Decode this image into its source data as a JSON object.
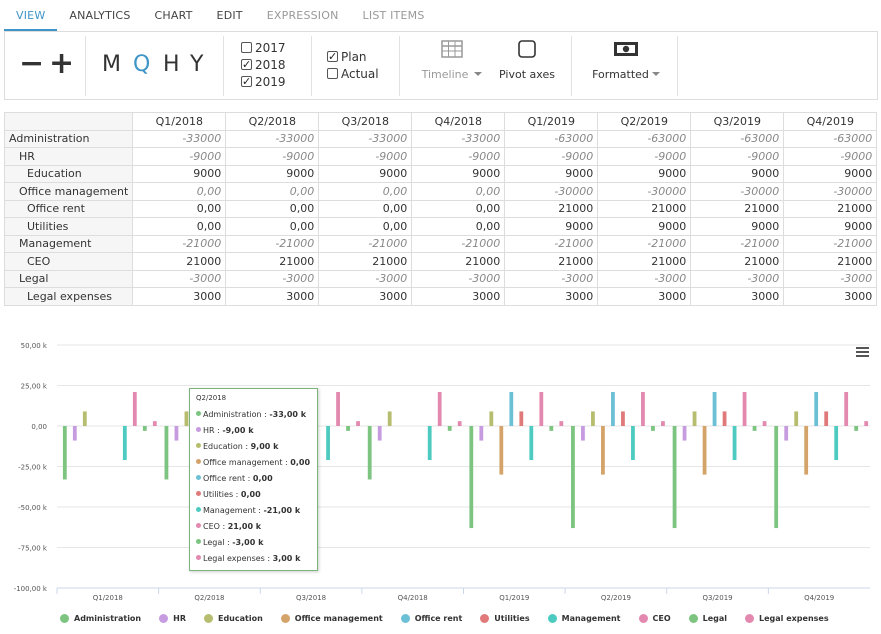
{
  "tabs": [
    {
      "label": "VIEW",
      "state": "active"
    },
    {
      "label": "ANALYTICS",
      "state": "normal"
    },
    {
      "label": "CHART",
      "state": "normal"
    },
    {
      "label": "EDIT",
      "state": "normal"
    },
    {
      "label": "EXPRESSION",
      "state": "disabled"
    },
    {
      "label": "LIST ITEMS",
      "state": "disabled"
    }
  ],
  "toolbar": {
    "zoom_out": "−",
    "zoom_in": "+",
    "periods": [
      "M",
      "Q",
      "H",
      "Y"
    ],
    "active_period": "Q",
    "years": [
      {
        "label": "2017",
        "checked": false
      },
      {
        "label": "2018",
        "checked": true
      },
      {
        "label": "2019",
        "checked": true
      }
    ],
    "versions": [
      {
        "label": "Plan",
        "checked": true
      },
      {
        "label": "Actual",
        "checked": false
      }
    ],
    "timeline_label": "Timeline",
    "pivot_label": "Pivot axes",
    "formatted_label": "Formatted"
  },
  "table": {
    "columns": [
      "Q1/2018",
      "Q2/2018",
      "Q3/2018",
      "Q4/2018",
      "Q1/2019",
      "Q2/2019",
      "Q3/2019",
      "Q4/2019"
    ],
    "rows": [
      {
        "label": "Administration",
        "level": 0,
        "values": [
          "-33000",
          "-33000",
          "-33000",
          "-33000",
          "-63000",
          "-63000",
          "-63000",
          "-63000"
        ],
        "style": "neg"
      },
      {
        "label": "HR",
        "level": 1,
        "values": [
          "-9000",
          "-9000",
          "-9000",
          "-9000",
          "-9000",
          "-9000",
          "-9000",
          "-9000"
        ],
        "style": "neg"
      },
      {
        "label": "Education",
        "level": 2,
        "values": [
          "9000",
          "9000",
          "9000",
          "9000",
          "9000",
          "9000",
          "9000",
          "9000"
        ],
        "style": "pos"
      },
      {
        "label": "Office management",
        "level": 1,
        "values": [
          "0,00",
          "0,00",
          "0,00",
          "0,00",
          "-30000",
          "-30000",
          "-30000",
          "-30000"
        ],
        "style": "neg"
      },
      {
        "label": "Office rent",
        "level": 2,
        "values": [
          "0,00",
          "0,00",
          "0,00",
          "0,00",
          "21000",
          "21000",
          "21000",
          "21000"
        ],
        "style": "pos"
      },
      {
        "label": "Utilities",
        "level": 2,
        "values": [
          "0,00",
          "0,00",
          "0,00",
          "0,00",
          "9000",
          "9000",
          "9000",
          "9000"
        ],
        "style": "pos"
      },
      {
        "label": "Management",
        "level": 1,
        "values": [
          "-21000",
          "-21000",
          "-21000",
          "-21000",
          "-21000",
          "-21000",
          "-21000",
          "-21000"
        ],
        "style": "neg"
      },
      {
        "label": "CEO",
        "level": 2,
        "values": [
          "21000",
          "21000",
          "21000",
          "21000",
          "21000",
          "21000",
          "21000",
          "21000"
        ],
        "style": "pos"
      },
      {
        "label": "Legal",
        "level": 1,
        "values": [
          "-3000",
          "-3000",
          "-3000",
          "-3000",
          "-3000",
          "-3000",
          "-3000",
          "-3000"
        ],
        "style": "neg"
      },
      {
        "label": "Legal expenses",
        "level": 2,
        "values": [
          "3000",
          "3000",
          "3000",
          "3000",
          "3000",
          "3000",
          "3000",
          "3000"
        ],
        "style": "pos"
      }
    ]
  },
  "chart_data": {
    "type": "bar",
    "categories": [
      "Q1/2018",
      "Q2/2018",
      "Q3/2018",
      "Q4/2018",
      "Q1/2019",
      "Q2/2019",
      "Q3/2019",
      "Q4/2019"
    ],
    "ylim": [
      -100,
      50
    ],
    "yticks": [
      "50,00 k",
      "25,00 k",
      "0,00",
      "-25,00 k",
      "-50,00 k",
      "-75,00 k",
      "-100,00 k"
    ],
    "ytick_values": [
      50,
      25,
      0,
      -25,
      -50,
      -75,
      -100
    ],
    "grid": true,
    "legend_position": "bottom",
    "series": [
      {
        "name": "Administration",
        "color": "#7cc47f",
        "values": [
          -33,
          -33,
          -33,
          -33,
          -63,
          -63,
          -63,
          -63
        ]
      },
      {
        "name": "HR",
        "color": "#c79be0",
        "values": [
          -9,
          -9,
          -9,
          -9,
          -9,
          -9,
          -9,
          -9
        ]
      },
      {
        "name": "Education",
        "color": "#b7bd6e",
        "values": [
          9,
          9,
          9,
          9,
          9,
          9,
          9,
          9
        ]
      },
      {
        "name": "Office management",
        "color": "#d4a36a",
        "values": [
          0,
          0,
          0,
          0,
          -30,
          -30,
          -30,
          -30
        ]
      },
      {
        "name": "Office rent",
        "color": "#6cc0d6",
        "values": [
          0,
          0,
          0,
          0,
          21,
          21,
          21,
          21
        ]
      },
      {
        "name": "Utilities",
        "color": "#e07a7a",
        "values": [
          0,
          0,
          0,
          0,
          9,
          9,
          9,
          9
        ]
      },
      {
        "name": "Management",
        "color": "#4ecbc0",
        "values": [
          -21,
          -21,
          -21,
          -21,
          -21,
          -21,
          -21,
          -21
        ]
      },
      {
        "name": "CEO",
        "color": "#e389b0",
        "values": [
          21,
          21,
          21,
          21,
          21,
          21,
          21,
          21
        ]
      },
      {
        "name": "Legal",
        "color": "#7cc47f",
        "values": [
          -3,
          -3,
          -3,
          -3,
          -3,
          -3,
          -3,
          -3
        ]
      },
      {
        "name": "Legal expenses",
        "color": "#e389b0",
        "values": [
          3,
          3,
          3,
          3,
          3,
          3,
          3,
          3
        ]
      }
    ]
  },
  "tooltip": {
    "title": "Q2/2018",
    "rows": [
      {
        "name": "Administration",
        "value": "-33,00 k",
        "color": "#7cc47f"
      },
      {
        "name": "HR",
        "value": "-9,00 k",
        "color": "#c79be0"
      },
      {
        "name": "Education",
        "value": "9,00 k",
        "color": "#b7bd6e"
      },
      {
        "name": "Office management",
        "value": "0,00",
        "color": "#d4a36a"
      },
      {
        "name": "Office rent",
        "value": "0,00",
        "color": "#6cc0d6"
      },
      {
        "name": "Utilities",
        "value": "0,00",
        "color": "#e07a7a"
      },
      {
        "name": "Management",
        "value": "-21,00 k",
        "color": "#4ecbc0"
      },
      {
        "name": "CEO",
        "value": "21,00 k",
        "color": "#e389b0"
      },
      {
        "name": "Legal",
        "value": "-3,00 k",
        "color": "#7cc47f"
      },
      {
        "name": "Legal expenses",
        "value": "3,00 k",
        "color": "#e389b0"
      }
    ]
  }
}
